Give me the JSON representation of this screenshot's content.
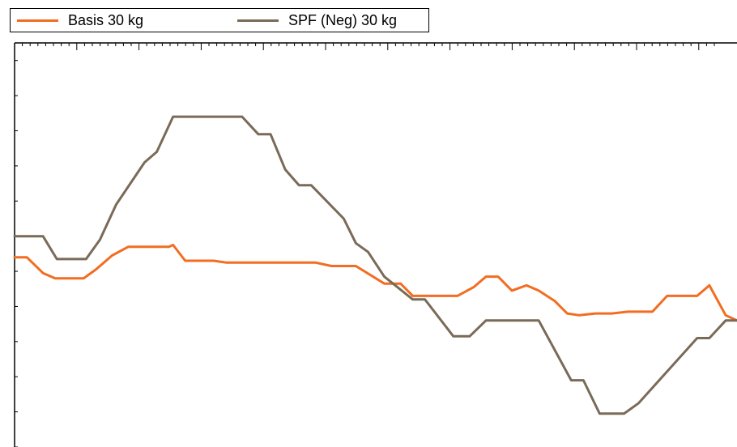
{
  "chart_data": {
    "type": "line",
    "title": "",
    "xlabel": "",
    "ylabel": "",
    "x": [
      0,
      1,
      2,
      3,
      4,
      5,
      6,
      7,
      8,
      9,
      10,
      11,
      12,
      13,
      14,
      15,
      16,
      17,
      18,
      19,
      20,
      21,
      22,
      23,
      24,
      25,
      26,
      27,
      28,
      29,
      30,
      31,
      32,
      33,
      34,
      35,
      36,
      37,
      38,
      39,
      40,
      41,
      42,
      43,
      44,
      45,
      46,
      47,
      48,
      49,
      50,
      51,
      52,
      53,
      54,
      55,
      56,
      57,
      58,
      59,
      60,
      61,
      62,
      63,
      64,
      65,
      66,
      67,
      68,
      69,
      70,
      71,
      72,
      73,
      74,
      75,
      76,
      77,
      78,
      79,
      80,
      81,
      82,
      83,
      84,
      85,
      86,
      87,
      88,
      89,
      90,
      91,
      92,
      93,
      94,
      95,
      96,
      97,
      98,
      99,
      100,
      101,
      102,
      103,
      104,
      105,
      106,
      107,
      108,
      109,
      110,
      111,
      112,
      113,
      114,
      115,
      116,
      117,
      118,
      119,
      120,
      121,
      122,
      123,
      124,
      125,
      126,
      127,
      128,
      129,
      130,
      131,
      132,
      133,
      134,
      135,
      136,
      137,
      138,
      139,
      140,
      141,
      142,
      143,
      144,
      145,
      146,
      147,
      148,
      149,
      150,
      151,
      152,
      153,
      154,
      155,
      156,
      157,
      158,
      159,
      160,
      161,
      162,
      163,
      164,
      165,
      166,
      167,
      168,
      169,
      170,
      171,
      172,
      173,
      174,
      175,
      176,
      177,
      178,
      179,
      180,
      181,
      182,
      183,
      184,
      185,
      186,
      187,
      188,
      189,
      190,
      191,
      192,
      193,
      194,
      195,
      196,
      197,
      198,
      199,
      200,
      201,
      202,
      203,
      204,
      205,
      206,
      207,
      208,
      209,
      210,
      211,
      212,
      213,
      214,
      215,
      216,
      217,
      218,
      219,
      220,
      221,
      222,
      223,
      224,
      225,
      226,
      227,
      228,
      229,
      230,
      231,
      232,
      233,
      234,
      235,
      236,
      237,
      238,
      239,
      240,
      241,
      242,
      243,
      244,
      245,
      246,
      247,
      248,
      249,
      250,
      251,
      252,
      253,
      254,
      255,
      256,
      257,
      258,
      259,
      260,
      261,
      262,
      263,
      264,
      265,
      266,
      267,
      268,
      269,
      270,
      271,
      272,
      273,
      274,
      275,
      276,
      277,
      278,
      279,
      280,
      281,
      282,
      283,
      284,
      285,
      286,
      287,
      288,
      289,
      290,
      291,
      292,
      293,
      294,
      295,
      296,
      297,
      298,
      299,
      300,
      301,
      302,
      303,
      304,
      305,
      306,
      307,
      308,
      309,
      310,
      311,
      312,
      313,
      314,
      315,
      316,
      317,
      318,
      319,
      320,
      321,
      322,
      323,
      324,
      325,
      326,
      327,
      328,
      329,
      330,
      331,
      332,
      333,
      334,
      335,
      336,
      337,
      338,
      339,
      340,
      341,
      342,
      343,
      344,
      345,
      346,
      347,
      348,
      349,
      350,
      351,
      352,
      353,
      354,
      355,
      356,
      357,
      358,
      359,
      360,
      361,
      362,
      363,
      364,
      365,
      366,
      367,
      368,
      369,
      370,
      371,
      372,
      373,
      374,
      375,
      376,
      377,
      378,
      379,
      380,
      381,
      382,
      383,
      384,
      385,
      386,
      387,
      388,
      389,
      390,
      391,
      392,
      393,
      394,
      395,
      396,
      397,
      398,
      399,
      400,
      401,
      402,
      403,
      404,
      405,
      406,
      407,
      408,
      409,
      410,
      411,
      412,
      413,
      414,
      415,
      416,
      417,
      418,
      419,
      420,
      421,
      422,
      423,
      424,
      425,
      426,
      427,
      428,
      429,
      430,
      431,
      432,
      433,
      434,
      435,
      436,
      437,
      438,
      439,
      440,
      441,
      442,
      443,
      444,
      445,
      446,
      447,
      448,
      449,
      450,
      451,
      452,
      453,
      454,
      455,
      456,
      457,
      458,
      459,
      460,
      461,
      462,
      463,
      464,
      465,
      466,
      467,
      468,
      469,
      470,
      471,
      472,
      473,
      474,
      475,
      476,
      477,
      478,
      479,
      480,
      481,
      482,
      483,
      484,
      485,
      486,
      487,
      488,
      489,
      490,
      491,
      492,
      493,
      494,
      495,
      496,
      497,
      498,
      499,
      500,
      501,
      502,
      503,
      504,
      505,
      506,
      507,
      508,
      509,
      510,
      511,
      512,
      513,
      514,
      515,
      516,
      517,
      518,
      519,
      520,
      521,
      522,
      523,
      524,
      525,
      526,
      527,
      528,
      529,
      530,
      531,
      532,
      533,
      534,
      535,
      536,
      537,
      538,
      539,
      540,
      541,
      542,
      543,
      544,
      545,
      546,
      547,
      548,
      549,
      550,
      551,
      552,
      553,
      554,
      555,
      556,
      557,
      558,
      559,
      560,
      561,
      562,
      563,
      564,
      565,
      566,
      567,
      568,
      569,
      570,
      571,
      572,
      573,
      574,
      575,
      576,
      577,
      578,
      579,
      580,
      581,
      582,
      583,
      584,
      585,
      586,
      587,
      588,
      589,
      590,
      591,
      592,
      593,
      594,
      595,
      596,
      597,
      598,
      599,
      600,
      601,
      602,
      603,
      604,
      605,
      606,
      607,
      608,
      609,
      610,
      611,
      612,
      613,
      614,
      615,
      616,
      617,
      618,
      619,
      620,
      621,
      622,
      623,
      624,
      625,
      626,
      627,
      628,
      629,
      630,
      631,
      632,
      633,
      634,
      635,
      636,
      637,
      638,
      639,
      640,
      641,
      642,
      643,
      644,
      645,
      646,
      647,
      648,
      649,
      650,
      651,
      652,
      653,
      654,
      655,
      656,
      657,
      658,
      659,
      660,
      661,
      662,
      663,
      664,
      665,
      666,
      667,
      668,
      669,
      670,
      671,
      672,
      673,
      674,
      675,
      676,
      677,
      678,
      679,
      680,
      681,
      682,
      683,
      684,
      685,
      686,
      687,
      688,
      689,
      690,
      691,
      692,
      693,
      694,
      695,
      696,
      697,
      698,
      699,
      700,
      701,
      702,
      703,
      704,
      705,
      706,
      707,
      708,
      709,
      710,
      711,
      712,
      713,
      714,
      715,
      716,
      717,
      718,
      719,
      720,
      721,
      722,
      723,
      724,
      725,
      726,
      727,
      728,
      729,
      730,
      731,
      732,
      733,
      734,
      735,
      736,
      737,
      738,
      739,
      740,
      741,
      742,
      743,
      744,
      745,
      746,
      747,
      748,
      749,
      750,
      751,
      752,
      753,
      754,
      755,
      756,
      757,
      758,
      759,
      760,
      761,
      762,
      763,
      764,
      765,
      766,
      767,
      768,
      769,
      770,
      771,
      772,
      773,
      774,
      775,
      776,
      777,
      778,
      779,
      780,
      781,
      782,
      783,
      784,
      785,
      786,
      787,
      788,
      789,
      790,
      791,
      792,
      793,
      794,
      795,
      796,
      797,
      798,
      799,
      800,
      801,
      802,
      803,
      804,
      805,
      806,
      807,
      808,
      809,
      810,
      811,
      812,
      813,
      814,
      815,
      816,
      817,
      818,
      819,
      820,
      821,
      822,
      823,
      824,
      825,
      826,
      827,
      828,
      829,
      830,
      831,
      832,
      833,
      834,
      835,
      836,
      837,
      838,
      839,
      840,
      841,
      842,
      843,
      844,
      845,
      846,
      847,
      848,
      849,
      850,
      851,
      852,
      853,
      854,
      855,
      856,
      857,
      858,
      859,
      860,
      861,
      862,
      863,
      864,
      865,
      866,
      867,
      868,
      869,
      870,
      871,
      872,
      873,
      874,
      875,
      876,
      877,
      878,
      879,
      880,
      881,
      882,
      883,
      884,
      885,
      886,
      887,
      888,
      889
    ],
    "series": [
      {
        "name": "Basis 30 kg",
        "color": "#f26d21",
        "points": [
          [
            0,
            5.8
          ],
          [
            15,
            5.8
          ],
          [
            35,
            4.9
          ],
          [
            50,
            4.6
          ],
          [
            85,
            4.6
          ],
          [
            100,
            5.1
          ],
          [
            120,
            5.9
          ],
          [
            140,
            6.4
          ],
          [
            190,
            6.4
          ],
          [
            195,
            6.5
          ],
          [
            210,
            5.6
          ],
          [
            245,
            5.6
          ],
          [
            260,
            5.5
          ],
          [
            370,
            5.5
          ],
          [
            390,
            5.3
          ],
          [
            420,
            5.3
          ],
          [
            455,
            4.3
          ],
          [
            475,
            4.3
          ],
          [
            490,
            3.6
          ],
          [
            545,
            3.6
          ],
          [
            565,
            4.1
          ],
          [
            580,
            4.7
          ],
          [
            595,
            4.7
          ],
          [
            612,
            3.9
          ],
          [
            630,
            4.2
          ],
          [
            645,
            3.9
          ],
          [
            665,
            3.3
          ],
          [
            680,
            2.6
          ],
          [
            695,
            2.5
          ],
          [
            715,
            2.6
          ],
          [
            735,
            2.6
          ],
          [
            755,
            2.7
          ],
          [
            785,
            2.7
          ],
          [
            803,
            3.6
          ],
          [
            840,
            3.6
          ],
          [
            855,
            4.2
          ],
          [
            875,
            2.5
          ],
          [
            889,
            2.2
          ]
        ]
      },
      {
        "name": "SPF (Neg) 30 kg",
        "color": "#7a6a58",
        "points": [
          [
            0,
            7.0
          ],
          [
            35,
            7.0
          ],
          [
            52,
            5.7
          ],
          [
            88,
            5.7
          ],
          [
            105,
            6.8
          ],
          [
            125,
            8.8
          ],
          [
            160,
            11.2
          ],
          [
            175,
            11.8
          ],
          [
            195,
            13.8
          ],
          [
            280,
            13.8
          ],
          [
            300,
            12.8
          ],
          [
            315,
            12.8
          ],
          [
            333,
            10.8
          ],
          [
            350,
            9.9
          ],
          [
            365,
            9.9
          ],
          [
            405,
            8.0
          ],
          [
            420,
            6.6
          ],
          [
            435,
            6.1
          ],
          [
            455,
            4.7
          ],
          [
            490,
            3.4
          ],
          [
            505,
            3.4
          ],
          [
            540,
            1.3
          ],
          [
            560,
            1.3
          ],
          [
            580,
            2.2
          ],
          [
            645,
            2.2
          ],
          [
            685,
            -1.2
          ],
          [
            700,
            -1.2
          ],
          [
            720,
            -3.1
          ],
          [
            750,
            -3.1
          ],
          [
            768,
            -2.5
          ],
          [
            840,
            1.2
          ],
          [
            855,
            1.2
          ],
          [
            875,
            2.2
          ],
          [
            889,
            2.2
          ]
        ]
      }
    ],
    "legend": {
      "placement": "top-left",
      "entries": [
        "Basis 30 kg",
        "SPF (Neg) 30 kg"
      ]
    },
    "grid": false,
    "xlim": [
      0,
      889
    ],
    "ylim": [
      -5.0,
      18.0
    ]
  }
}
